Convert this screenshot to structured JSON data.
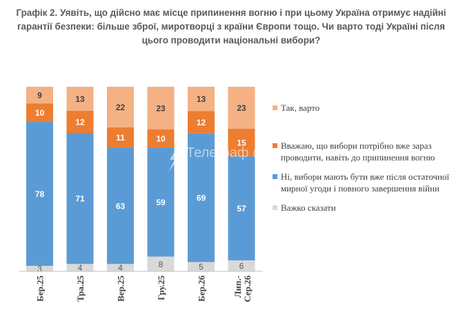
{
  "title": "Графік 2. Уявіть, що дійсно має місце припинення вогню і при цьому Україна отримує надійні гарантії безпеки: більше зброї, миротворці з країни Європи тощо. Чи варто тоді Україні після цього проводити національні вибори?",
  "colors": {
    "yes": "#F4B183",
    "now": "#ED7D31",
    "no": "#5B9BD5",
    "hard": "#D9D9D9",
    "label_dark": "#404040",
    "label_light": "#ffffff",
    "axis": "#BFBFBF"
  },
  "chart_data": {
    "type": "bar",
    "stacked": true,
    "stacked_percent": true,
    "title": "Графік 2. Уявіть, що дійсно має місце припинення вогню і при цьому Україна отримує надійні гарантії безпеки: більше зброї, миротворці з країни Європи тощо. Чи варто тоді Україні після цього проводити національні вибори?",
    "categories": [
      "Бер.25",
      "Тра.25",
      "Вер.25",
      "Гру.25",
      "Бер.26",
      "Лип.-Сер.26"
    ],
    "series": [
      {
        "name": "Важко сказати",
        "key": "hard",
        "values": [
          3,
          4,
          4,
          8,
          5,
          6
        ]
      },
      {
        "name": "Ні, вибори мають бути вже після остаточної мирної угоди і повного завершення війни",
        "key": "no",
        "values": [
          78,
          71,
          63,
          59,
          69,
          57
        ]
      },
      {
        "name": "Вважаю, що вибори потрібно вже зараз проводити, навіть до припинення вогню",
        "key": "now",
        "values": [
          10,
          12,
          11,
          10,
          12,
          15
        ]
      },
      {
        "name": "Так, варто",
        "key": "yes",
        "values": [
          9,
          13,
          22,
          23,
          13,
          23
        ]
      }
    ],
    "ylim": [
      0,
      100
    ],
    "legend_position": "right",
    "grid": false,
    "data_labels": true
  },
  "legend": [
    {
      "key": "yes",
      "label": "Так, варто"
    },
    {
      "key": "now",
      "label": "Вважаю, що вибори потрібно вже зараз проводити, навіть до припинення вогню"
    },
    {
      "key": "no",
      "label": "Ні, вибори мають бути вже після остаточної мирної угоди і повного завершення війни"
    },
    {
      "key": "hard",
      "label": "Важко сказати"
    }
  ],
  "watermark": {
    "icon": "telegraf-logo-icon",
    "text": "Телеграф @Tsupov"
  }
}
